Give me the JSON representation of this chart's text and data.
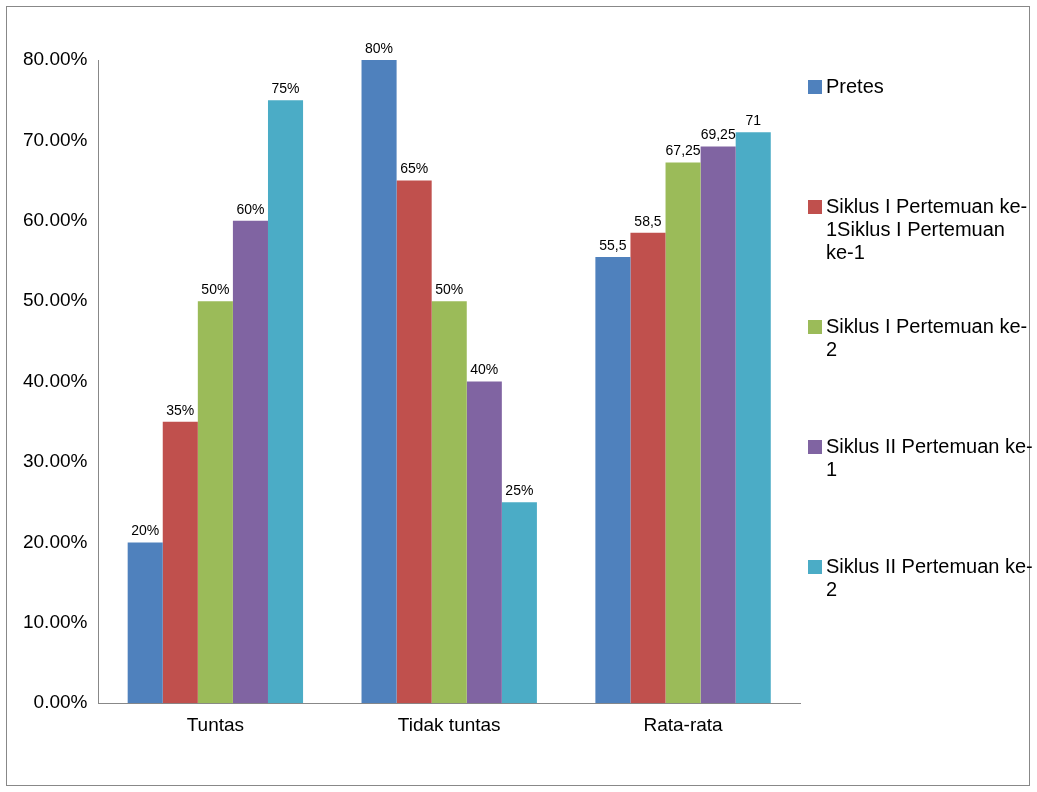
{
  "chart_data": {
    "type": "bar",
    "categories": [
      "Tuntas",
      "Tidak tuntas",
      "Rata-rata"
    ],
    "series": [
      {
        "name": "Pretes",
        "color": "#4f81bd",
        "values": [
          20,
          80,
          55.5
        ],
        "value_labels": [
          "20%",
          "80%",
          "55,5"
        ]
      },
      {
        "name": "Siklus I Pertemuan ke-1Siklus I Pertemuan ke-1",
        "color": "#c0504d",
        "values": [
          35,
          65,
          58.5
        ],
        "value_labels": [
          "35%",
          "65%",
          "58,5"
        ]
      },
      {
        "name": "Siklus I Pertemuan ke-2",
        "color": "#9bbb59",
        "values": [
          50,
          50,
          67.25
        ],
        "value_labels": [
          "50%",
          "50%",
          "67,25"
        ]
      },
      {
        "name": "Siklus II Pertemuan ke-1",
        "color": "#8064a2",
        "values": [
          60,
          40,
          69.25
        ],
        "value_labels": [
          "60%",
          "40%",
          "69,25"
        ]
      },
      {
        "name": "Siklus II Pertemuan ke-2",
        "color": "#4bacc6",
        "values": [
          75,
          25,
          71
        ],
        "value_labels": [
          "75%",
          "25%",
          "71"
        ]
      }
    ],
    "ylim": [
      0,
      80
    ],
    "yticks": [
      {
        "value": 0,
        "label": "0.00%"
      },
      {
        "value": 10,
        "label": "10.00%"
      },
      {
        "value": 20,
        "label": "20.00%"
      },
      {
        "value": 30,
        "label": "30.00%"
      },
      {
        "value": 40,
        "label": "40.00%"
      },
      {
        "value": 50,
        "label": "50.00%"
      },
      {
        "value": 60,
        "label": "60.00%"
      },
      {
        "value": 70,
        "label": "70.00%"
      },
      {
        "value": 80,
        "label": "80.00%"
      }
    ],
    "grid": false,
    "legend": "right"
  }
}
